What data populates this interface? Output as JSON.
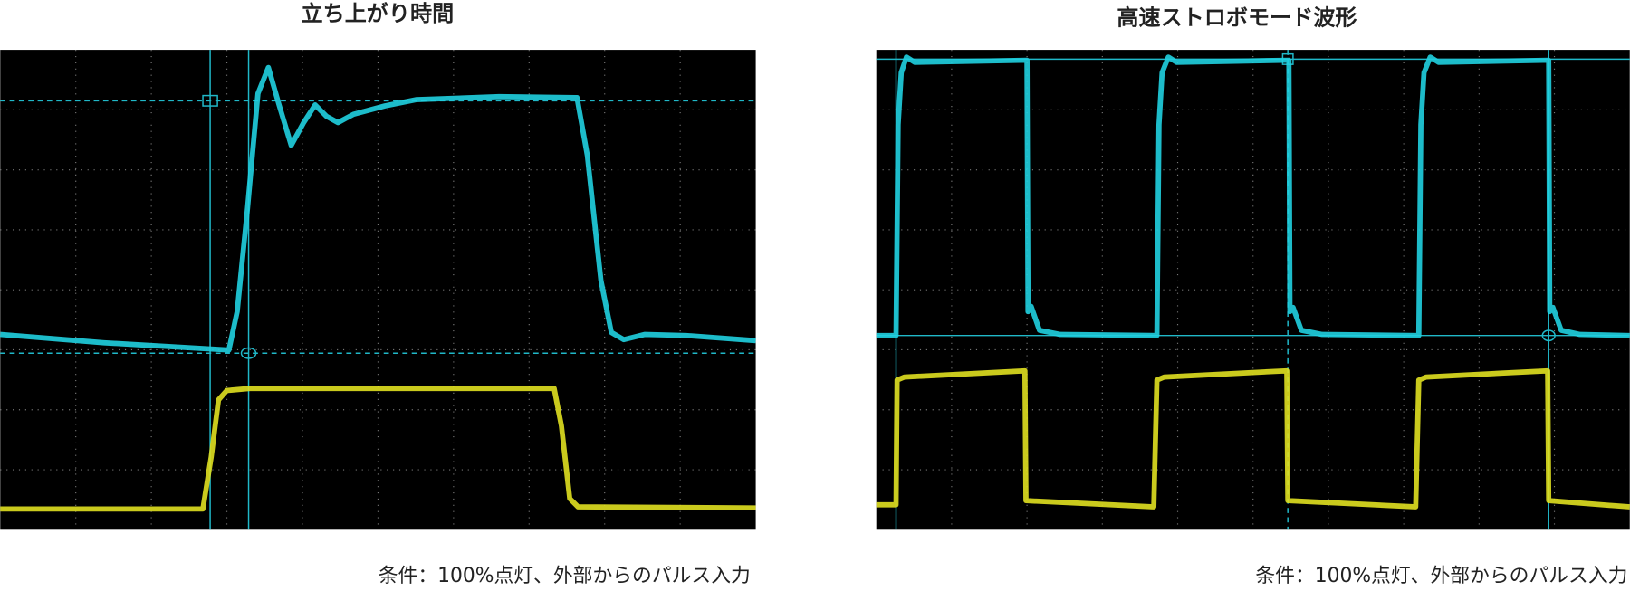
{
  "left": {
    "title": "立ち上がり時間",
    "caption": "条件：100%点灯、外部からのパルス入力"
  },
  "right": {
    "title": "高速ストロボモード波形",
    "caption": "条件：100%点灯、外部からのパルス入力"
  }
}
